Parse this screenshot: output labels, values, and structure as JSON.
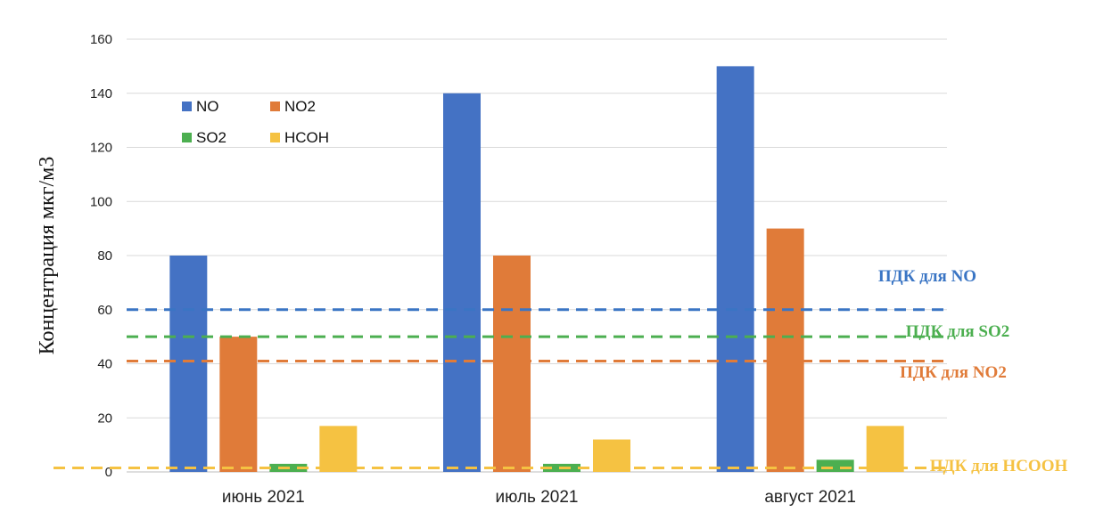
{
  "chart_data": {
    "type": "bar",
    "title": "",
    "xlabel": "",
    "ylabel": "Концентрация мкг/м3",
    "ylim": [
      0,
      160
    ],
    "yticks": [
      0,
      20,
      40,
      60,
      80,
      100,
      120,
      140,
      160
    ],
    "grid": true,
    "legend_position": "top-left",
    "categories": [
      "июнь 2021",
      "июль 2021",
      "август 2021"
    ],
    "series": [
      {
        "name": "NO",
        "color": "#4472C4",
        "values": [
          80,
          140,
          150
        ]
      },
      {
        "name": "NO2",
        "color": "#E07B39",
        "values": [
          50,
          80,
          90
        ]
      },
      {
        "name": "SO2",
        "color": "#4CAF50",
        "values": [
          3,
          3,
          4.5
        ]
      },
      {
        "name": "HCOH",
        "color": "#F5C242",
        "values": [
          17,
          12,
          17
        ]
      }
    ],
    "reference_lines": [
      {
        "label": "ПДК для NO",
        "value": 60,
        "color": "#3A75C4"
      },
      {
        "label": "ПДК для SO2",
        "value": 50,
        "color": "#4CAF50"
      },
      {
        "label": "ПДК для NO2",
        "value": 41,
        "color": "#E07B39"
      },
      {
        "label": "ПДК для HCOOH",
        "value": 1.5,
        "color": "#F5C242"
      }
    ]
  }
}
